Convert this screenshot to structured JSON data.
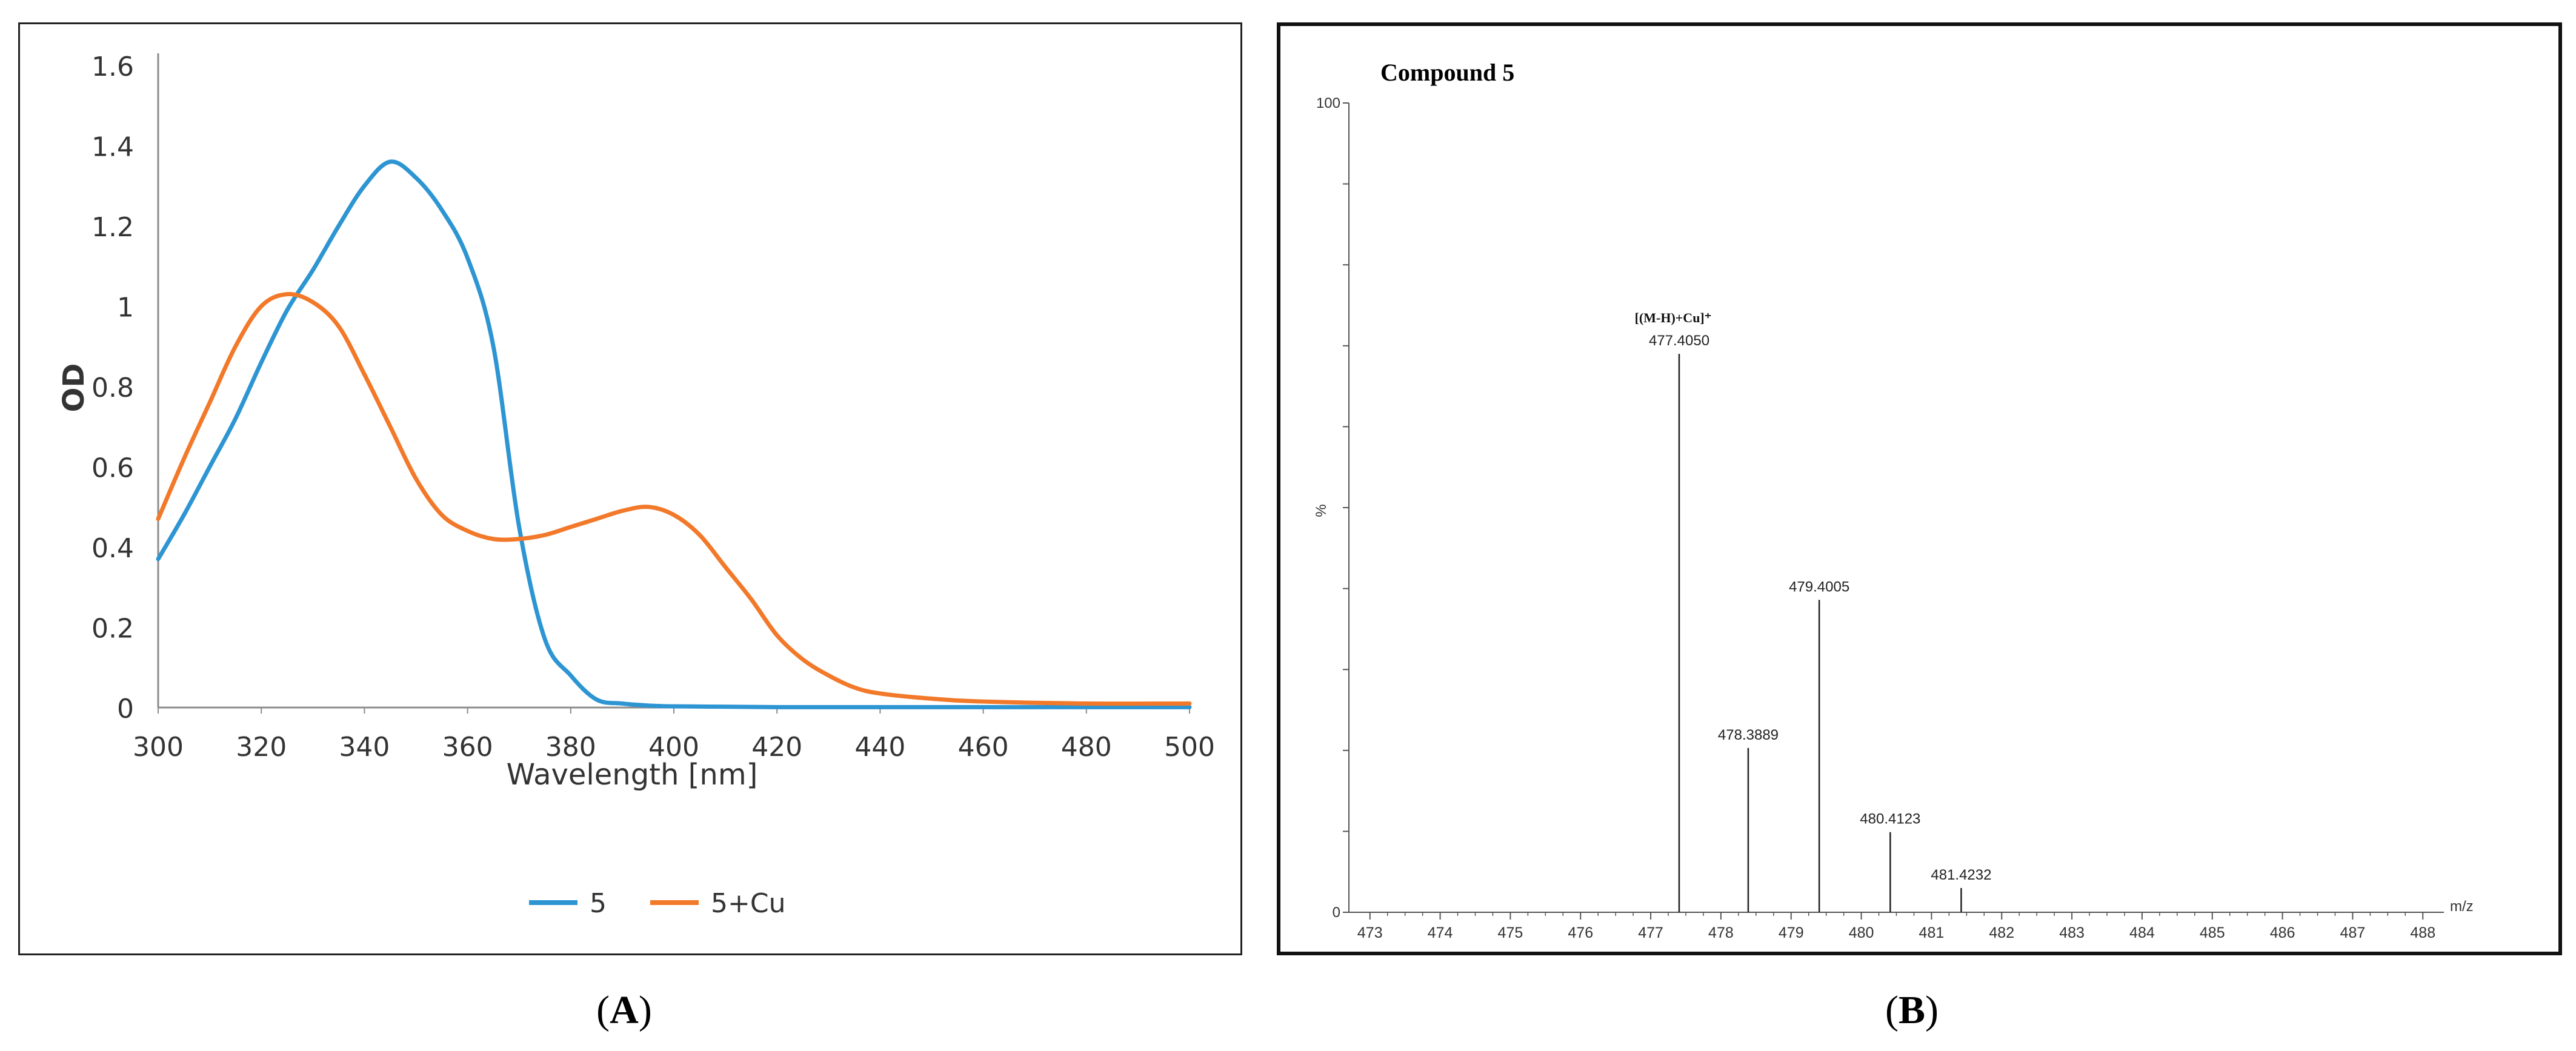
{
  "panels": {
    "a": {
      "caption_letter": "A"
    },
    "b": {
      "caption_letter": "B"
    }
  },
  "colors": {
    "series_5": "#2E95D3",
    "series_5cu": "#F2792A",
    "axis": "#8c8c8c",
    "text": "#333333",
    "peak": "#222222"
  },
  "chart_data": [
    {
      "type": "line",
      "title": "",
      "xlabel": "Wavelength [nm]",
      "ylabel": "OD",
      "xlim": [
        300,
        500
      ],
      "ylim": [
        0,
        1.6
      ],
      "x_ticks": [
        300,
        320,
        340,
        360,
        380,
        400,
        420,
        440,
        460,
        480,
        500
      ],
      "y_ticks": [
        0,
        0.2,
        0.4,
        0.6,
        0.8,
        1,
        1.2,
        1.4,
        1.6
      ],
      "y_tick_labels": [
        "0",
        "0.2",
        "0.4",
        "0.6",
        "0.8",
        "1",
        "1.2",
        "1.4",
        "1.6"
      ],
      "grid": false,
      "legend_position": "bottom",
      "series": [
        {
          "name": "5",
          "color": "#2E95D3",
          "x": [
            300,
            305,
            310,
            315,
            320,
            325,
            330,
            335,
            340,
            345,
            350,
            355,
            360,
            365,
            370,
            375,
            380,
            385,
            390,
            395,
            400,
            410,
            420,
            440,
            460,
            480,
            500
          ],
          "y": [
            0.37,
            0.48,
            0.6,
            0.72,
            0.86,
            0.99,
            1.09,
            1.2,
            1.3,
            1.36,
            1.32,
            1.24,
            1.12,
            0.9,
            0.45,
            0.17,
            0.08,
            0.02,
            0.01,
            0.005,
            0.003,
            0.002,
            0.001,
            0.001,
            0.001,
            0.001,
            0.001
          ]
        },
        {
          "name": "5+Cu",
          "color": "#F2792A",
          "x": [
            300,
            305,
            310,
            315,
            320,
            325,
            330,
            335,
            340,
            345,
            350,
            355,
            360,
            365,
            370,
            375,
            380,
            385,
            390,
            395,
            400,
            405,
            410,
            415,
            420,
            425,
            430,
            435,
            440,
            450,
            460,
            480,
            500
          ],
          "y": [
            0.47,
            0.62,
            0.76,
            0.9,
            1.0,
            1.03,
            1.01,
            0.95,
            0.83,
            0.7,
            0.57,
            0.48,
            0.44,
            0.42,
            0.42,
            0.43,
            0.45,
            0.47,
            0.49,
            0.5,
            0.48,
            0.43,
            0.35,
            0.27,
            0.18,
            0.12,
            0.08,
            0.05,
            0.035,
            0.022,
            0.015,
            0.01,
            0.01
          ]
        }
      ]
    },
    {
      "type": "bar",
      "title": "Compound 5",
      "xlabel": "m/z",
      "ylabel": "%",
      "xlim": [
        472.7,
        488.3
      ],
      "ylim": [
        0,
        100
      ],
      "x_ticks": [
        473,
        474,
        475,
        476,
        477,
        478,
        479,
        480,
        481,
        482,
        483,
        484,
        485,
        486,
        487,
        488
      ],
      "y_tick_labels": [
        "0",
        "100"
      ],
      "peaks": [
        {
          "mz": 477.405,
          "intensity": 69,
          "label": "477.4050"
        },
        {
          "mz": 478.3889,
          "intensity": 20.3,
          "label": "478.3889"
        },
        {
          "mz": 479.4005,
          "intensity": 38.6,
          "label": "479.4005"
        },
        {
          "mz": 480.4123,
          "intensity": 9.9,
          "label": "480.4123"
        },
        {
          "mz": 481.4232,
          "intensity": 3.0,
          "label": "481.4232"
        }
      ],
      "annotation": "[(M-H)+Cu]⁺"
    }
  ]
}
